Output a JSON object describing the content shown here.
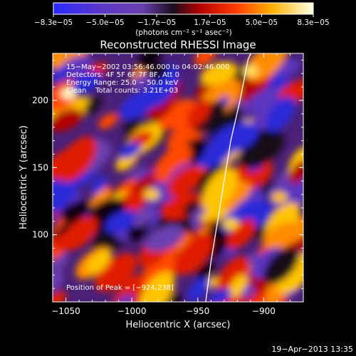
{
  "chart_data": {
    "type": "heatmap",
    "title": "Reconstructed RHESSI Image",
    "xlabel": "Heliocentric X (arcsec)",
    "ylabel": "Heliocentric Y (arcsec)",
    "xlim": [
      -1060,
      -870
    ],
    "ylim": [
      50,
      235
    ],
    "xticks": [
      {
        "value": -1050,
        "label": "−1050"
      },
      {
        "value": -1000,
        "label": "−1000"
      },
      {
        "value": -950,
        "label": "−950"
      },
      {
        "value": -900,
        "label": "−900"
      }
    ],
    "yticks": [
      {
        "value": 100,
        "label": "100"
      },
      {
        "value": 150,
        "label": "150"
      },
      {
        "value": 200,
        "label": "200"
      }
    ],
    "colorbar": {
      "range": [
        -8.3e-05,
        8.3e-05
      ],
      "ticks": [
        {
          "value": -8.3e-05,
          "label": "−8.3e−05"
        },
        {
          "value": -5e-05,
          "label": "−5.0e−05"
        },
        {
          "value": -1.7e-05,
          "label": "−1.7e−05"
        },
        {
          "value": 1.7e-05,
          "label": "1.7e−05"
        },
        {
          "value": 5e-05,
          "label": "5.0e−05"
        },
        {
          "value": 8.3e-05,
          "label": "8.3e−05"
        }
      ],
      "unit_label": "(photons cm⁻² s⁻¹ asec⁻²)"
    },
    "annotations": [
      "15−May−2002 03:56:46.000 to 04:02:46.000",
      "Detectors: 4F 5F 6F 7F 8F, Att 0",
      "Energy Range: 25.0 − 50.0 keV",
      "Clean    Total counts: 3.21E+03"
    ],
    "peak_label": "Position of Peak = [−924,238]",
    "limb_curve": [
      [
        -944,
        50
      ],
      [
        -940,
        80
      ],
      [
        -935,
        110
      ],
      [
        -930,
        140
      ],
      [
        -925,
        170
      ],
      [
        -918,
        200
      ],
      [
        -912,
        230
      ],
      [
        -910,
        235
      ]
    ],
    "colormap": "rainbow-temperature (blue-purple-black-red-orange-yellow-white)",
    "grid": false,
    "legend": "none"
  },
  "footer_date": "19−Apr−2013 13:35"
}
